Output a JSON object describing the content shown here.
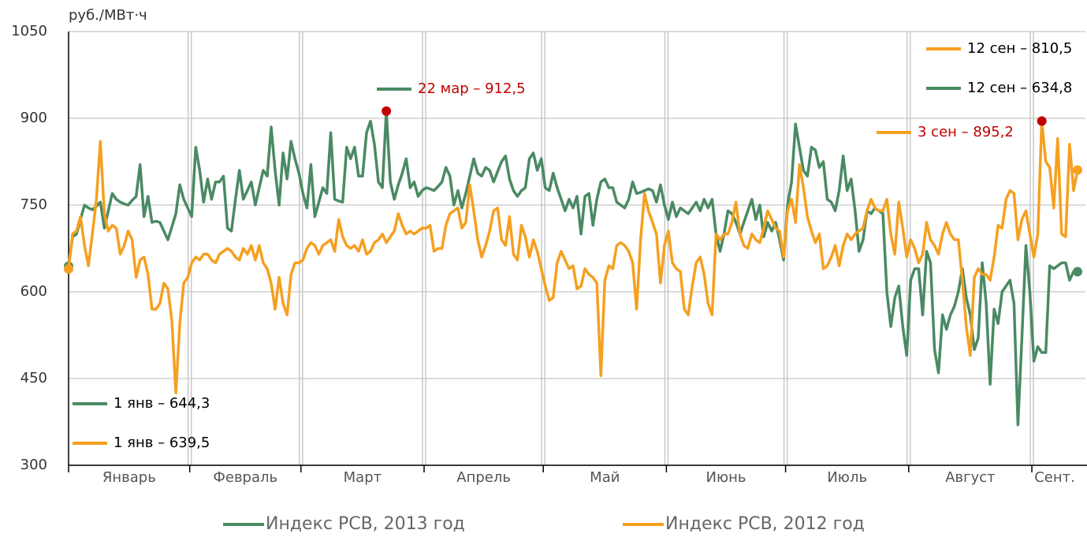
{
  "chart_data": {
    "type": "line",
    "y_label": "руб./МВт·ч",
    "ylim": [
      300,
      1050
    ],
    "yticks": [
      300,
      450,
      600,
      750,
      900,
      1050
    ],
    "grid": true,
    "xlim": [
      1,
      255
    ],
    "xticks": [
      1,
      31.5,
      59.5,
      90.5,
      120.5,
      151.5,
      181.5,
      212.5,
      243.5
    ],
    "month_labels": [
      "Январь",
      "Февраль",
      "Март",
      "Апрель",
      "Май",
      "Июнь",
      "Июль",
      "Август",
      "Сент."
    ],
    "x": [
      1,
      2,
      3,
      4,
      5,
      6,
      7,
      8,
      9,
      10,
      11,
      12,
      13,
      14,
      15,
      16,
      17,
      18,
      19,
      20,
      21,
      22,
      23,
      24,
      25,
      26,
      27,
      28,
      29,
      30,
      31,
      32,
      33,
      34,
      35,
      36,
      37,
      38,
      39,
      40,
      41,
      42,
      43,
      44,
      45,
      46,
      47,
      48,
      49,
      50,
      51,
      52,
      53,
      54,
      55,
      56,
      57,
      58,
      59,
      60,
      61,
      62,
      63,
      64,
      65,
      66,
      67,
      68,
      69,
      70,
      71,
      72,
      73,
      74,
      75,
      76,
      77,
      78,
      79,
      80,
      81,
      82,
      83,
      84,
      85,
      86,
      87,
      88,
      89,
      90,
      91,
      92,
      93,
      94,
      95,
      96,
      97,
      98,
      99,
      100,
      101,
      102,
      103,
      104,
      105,
      106,
      107,
      108,
      109,
      110,
      111,
      112,
      113,
      114,
      115,
      116,
      117,
      118,
      119,
      120,
      121,
      122,
      123,
      124,
      125,
      126,
      127,
      128,
      129,
      130,
      131,
      132,
      133,
      134,
      135,
      136,
      137,
      138,
      139,
      140,
      141,
      142,
      143,
      144,
      145,
      146,
      147,
      148,
      149,
      150,
      151,
      152,
      153,
      154,
      155,
      156,
      157,
      158,
      159,
      160,
      161,
      162,
      163,
      164,
      165,
      166,
      167,
      168,
      169,
      170,
      171,
      172,
      173,
      174,
      175,
      176,
      177,
      178,
      179,
      180,
      181,
      182,
      183,
      184,
      185,
      186,
      187,
      188,
      189,
      190,
      191,
      192,
      193,
      194,
      195,
      196,
      197,
      198,
      199,
      200,
      201,
      202,
      203,
      204,
      205,
      206,
      207,
      208,
      209,
      210,
      211,
      212,
      213,
      214,
      215,
      216,
      217,
      218,
      219,
      220,
      221,
      222,
      223,
      224,
      225,
      226,
      227,
      228,
      229,
      230,
      231,
      232,
      233,
      234,
      235,
      236,
      237,
      238,
      239,
      240,
      241,
      242,
      243,
      244,
      245,
      246,
      247,
      248,
      249,
      250,
      251,
      252,
      253,
      254,
      255
    ],
    "series": [
      {
        "name": "Индекс РСВ, 2013 год",
        "color": "#4a8a63",
        "values": [
          644.3,
          695,
          700,
          725,
          750,
          745,
          742,
          748,
          755,
          710,
          740,
          770,
          760,
          755,
          752,
          750,
          758,
          765,
          820,
          730,
          765,
          720,
          722,
          720,
          705,
          690,
          712,
          735,
          785,
          760,
          745,
          730,
          850,
          810,
          755,
          795,
          760,
          790,
          790,
          800,
          710,
          705,
          760,
          810,
          760,
          775,
          790,
          750,
          780,
          810,
          800,
          885,
          810,
          750,
          840,
          795,
          860,
          830,
          805,
          770,
          745,
          820,
          730,
          755,
          780,
          770,
          875,
          760,
          757,
          755,
          850,
          830,
          850,
          800,
          800,
          875,
          895,
          855,
          790,
          780,
          912.5,
          790,
          760,
          785,
          805,
          830,
          780,
          790,
          765,
          775,
          780,
          778,
          775,
          782,
          790,
          815,
          800,
          750,
          775,
          745,
          770,
          800,
          830,
          805,
          800,
          815,
          810,
          790,
          808,
          825,
          835,
          795,
          775,
          765,
          775,
          780,
          830,
          840,
          810,
          830,
          780,
          775,
          805,
          780,
          760,
          740,
          760,
          745,
          765,
          700,
          765,
          770,
          715,
          760,
          790,
          795,
          780,
          780,
          755,
          750,
          745,
          760,
          790,
          770,
          772,
          775,
          778,
          775,
          755,
          785,
          750,
          725,
          755,
          730,
          745,
          740,
          735,
          745,
          755,
          740,
          760,
          745,
          760,
          700,
          670,
          700,
          740,
          735,
          720,
          700,
          720,
          740,
          760,
          725,
          750,
          695,
          720,
          705,
          720,
          690,
          655,
          750,
          790,
          890,
          850,
          810,
          800,
          850,
          845,
          815,
          825,
          760,
          755,
          740,
          775,
          835,
          775,
          795,
          740,
          670,
          690,
          740,
          735,
          745,
          740,
          735,
          600,
          540,
          590,
          610,
          540,
          490,
          620,
          640,
          640,
          560,
          670,
          650,
          500,
          460,
          560,
          535,
          560,
          575,
          600,
          640,
          590,
          560,
          500,
          520,
          650,
          580,
          440,
          570,
          545,
          600,
          610,
          620,
          580,
          370,
          520,
          680,
          600,
          480,
          505,
          495,
          495,
          645,
          640,
          645,
          650,
          650,
          620,
          635,
          634.8
        ]
      },
      {
        "name": "Индекс РСВ, 2012 год",
        "color": "#f5a020",
        "values": [
          639.5,
          700,
          705,
          730,
          680,
          645,
          700,
          760,
          860,
          735,
          705,
          715,
          710,
          665,
          680,
          705,
          690,
          625,
          655,
          660,
          630,
          570,
          570,
          580,
          615,
          605,
          550,
          425,
          545,
          615,
          625,
          650,
          660,
          655,
          665,
          665,
          655,
          650,
          665,
          670,
          675,
          670,
          660,
          655,
          675,
          665,
          680,
          655,
          680,
          650,
          640,
          615,
          570,
          625,
          580,
          560,
          630,
          650,
          650,
          655,
          675,
          685,
          680,
          665,
          680,
          685,
          690,
          670,
          725,
          695,
          680,
          675,
          680,
          670,
          690,
          665,
          670,
          685,
          690,
          700,
          685,
          695,
          705,
          735,
          715,
          700,
          705,
          700,
          705,
          710,
          710,
          715,
          670,
          675,
          675,
          715,
          735,
          740,
          745,
          710,
          720,
          785,
          740,
          690,
          660,
          680,
          705,
          740,
          745,
          690,
          680,
          730,
          665,
          655,
          715,
          695,
          660,
          690,
          670,
          640,
          610,
          585,
          590,
          650,
          670,
          655,
          640,
          645,
          605,
          610,
          640,
          630,
          625,
          615,
          455,
          620,
          645,
          640,
          680,
          685,
          680,
          670,
          650,
          570,
          690,
          770,
          740,
          720,
          700,
          615,
          680,
          705,
          650,
          640,
          635,
          570,
          560,
          610,
          650,
          660,
          630,
          580,
          560,
          700,
          690,
          700,
          700,
          720,
          755,
          700,
          680,
          675,
          700,
          690,
          685,
          710,
          740,
          725,
          710,
          705,
          660,
          740,
          760,
          720,
          820,
          780,
          730,
          705,
          685,
          700,
          640,
          645,
          660,
          680,
          645,
          680,
          700,
          690,
          700,
          705,
          710,
          740,
          760,
          745,
          740,
          740,
          760,
          700,
          665,
          755,
          710,
          660,
          690,
          675,
          650,
          665,
          720,
          690,
          680,
          665,
          700,
          720,
          700,
          690,
          690,
          620,
          540,
          490,
          625,
          640,
          630,
          630,
          620,
          660,
          715,
          710,
          760,
          775,
          770,
          690,
          725,
          740,
          700,
          660,
          700,
          895.2,
          825,
          815,
          745,
          865,
          700,
          695,
          855,
          775,
          810.5
        ]
      }
    ],
    "annotations": [
      {
        "text": "22 мар – 912,5",
        "color": "#c00000",
        "line_color": "#4a8a63"
      },
      {
        "text": "3 сен – 895,2",
        "color": "#c00000",
        "line_color": "#f5a020"
      },
      {
        "text": "12 сен – 810,5",
        "color": "#000000",
        "line_color": "#f5a020"
      },
      {
        "text": "12 сен – 634,8",
        "color": "#000000",
        "line_color": "#4a8a63"
      },
      {
        "text": "1 янв – 644,3",
        "color": "#000000",
        "line_color": "#4a8a63"
      },
      {
        "text": "1 янв – 639,5",
        "color": "#000000",
        "line_color": "#f5a020"
      }
    ],
    "max_color": "#c00000"
  }
}
